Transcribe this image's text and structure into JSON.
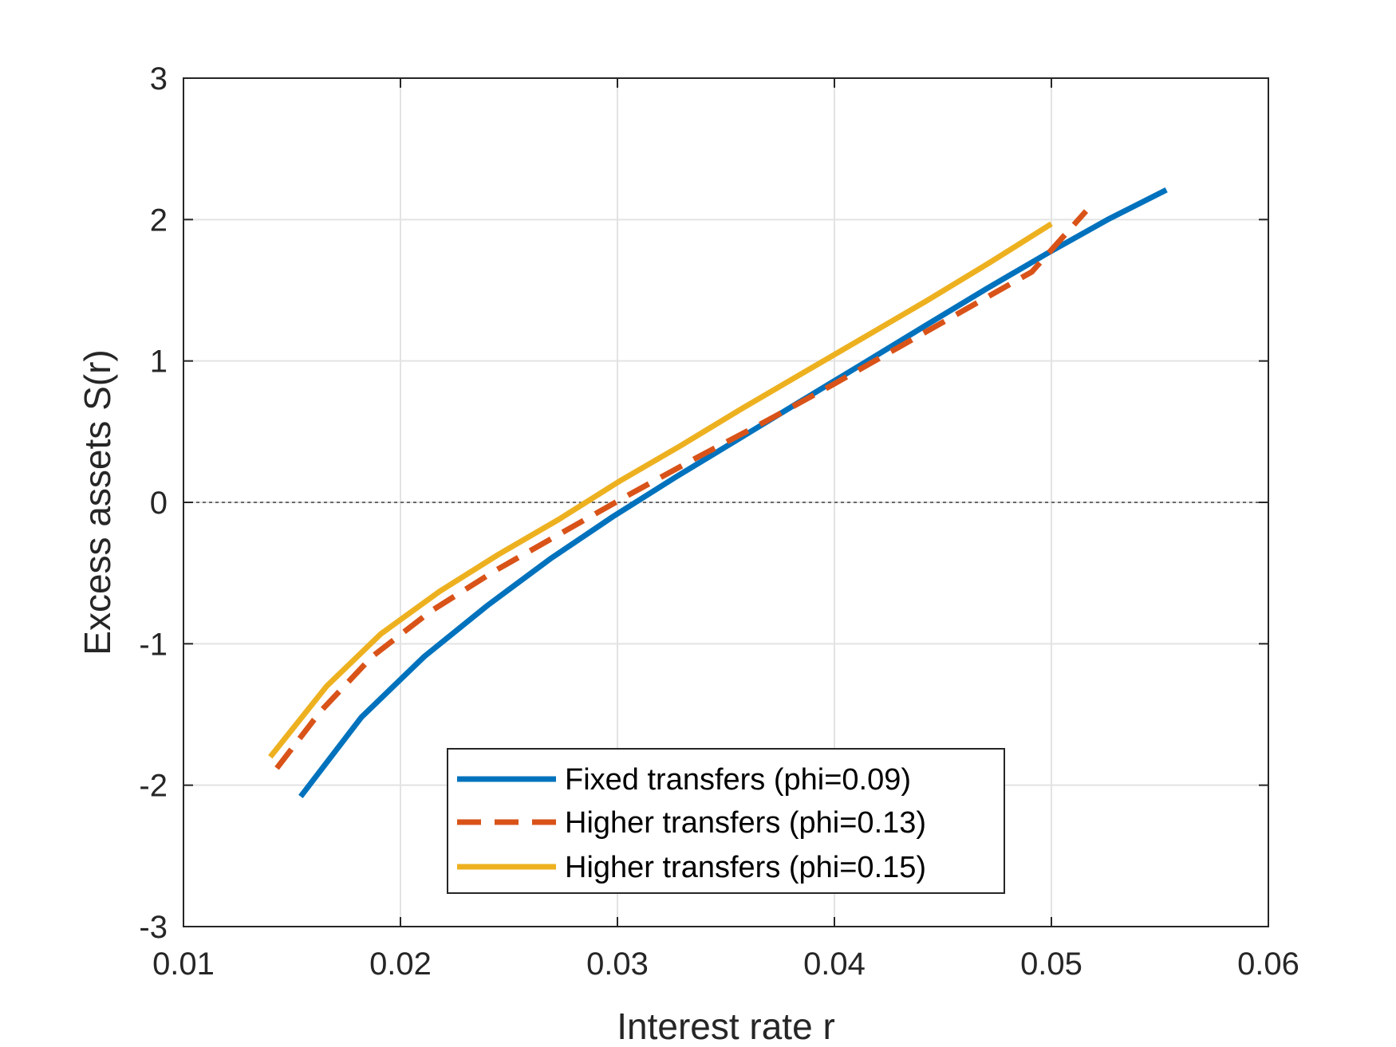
{
  "chart_data": {
    "type": "line",
    "xlabel": "Interest rate r",
    "ylabel": "Excess assets S(r)",
    "xlim": [
      0.01,
      0.06
    ],
    "ylim": [
      -3,
      3
    ],
    "xticks": [
      0.01,
      0.02,
      0.03,
      0.04,
      0.05,
      0.06
    ],
    "xtick_labels": [
      "0.01",
      "0.02",
      "0.03",
      "0.04",
      "0.05",
      "0.06"
    ],
    "yticks": [
      -3,
      -2,
      -1,
      0,
      1,
      2,
      3
    ],
    "ytick_labels": [
      "-3",
      "-2",
      "-1",
      "0",
      "1",
      "2",
      "3"
    ],
    "grid": true,
    "legend_position": "bottom-center",
    "reference_line": {
      "y": 0,
      "style": "dotted",
      "color": "#404040"
    },
    "series": [
      {
        "name": "Fixed transfers (phi=0.09)",
        "color": "#0072BD",
        "style": "solid",
        "x": [
          0.0154,
          0.0182,
          0.0211,
          0.024,
          0.0269,
          0.0298,
          0.0327,
          0.0356,
          0.0385,
          0.0413,
          0.0442,
          0.047,
          0.0498,
          0.0526,
          0.0553
        ],
        "y": [
          -2.08,
          -1.52,
          -1.09,
          -0.73,
          -0.4,
          -0.1,
          0.18,
          0.45,
          0.72,
          0.98,
          1.25,
          1.51,
          1.76,
          2.0,
          2.21
        ]
      },
      {
        "name": "Higher transfers (phi=0.13)",
        "color": "#D95319",
        "style": "dashed",
        "x": [
          0.0143,
          0.0163,
          0.0187,
          0.0214,
          0.0244,
          0.0275,
          0.0306,
          0.0337,
          0.0368,
          0.0399,
          0.043,
          0.0461,
          0.0491,
          0.0516
        ],
        "y": [
          -1.88,
          -1.48,
          -1.09,
          -0.77,
          -0.48,
          -0.21,
          0.06,
          0.32,
          0.57,
          0.83,
          1.1,
          1.37,
          1.63,
          2.06
        ]
      },
      {
        "name": "Higher transfers (phi=0.15)",
        "color": "#EDB120",
        "style": "solid",
        "x": [
          0.014,
          0.0166,
          0.0191,
          0.0218,
          0.0245,
          0.0273,
          0.0301,
          0.0329,
          0.0357,
          0.0386,
          0.0414,
          0.0443,
          0.0471,
          0.05
        ],
        "y": [
          -1.8,
          -1.3,
          -0.93,
          -0.63,
          -0.37,
          -0.12,
          0.15,
          0.4,
          0.66,
          0.92,
          1.17,
          1.43,
          1.69,
          1.97
        ]
      }
    ]
  }
}
